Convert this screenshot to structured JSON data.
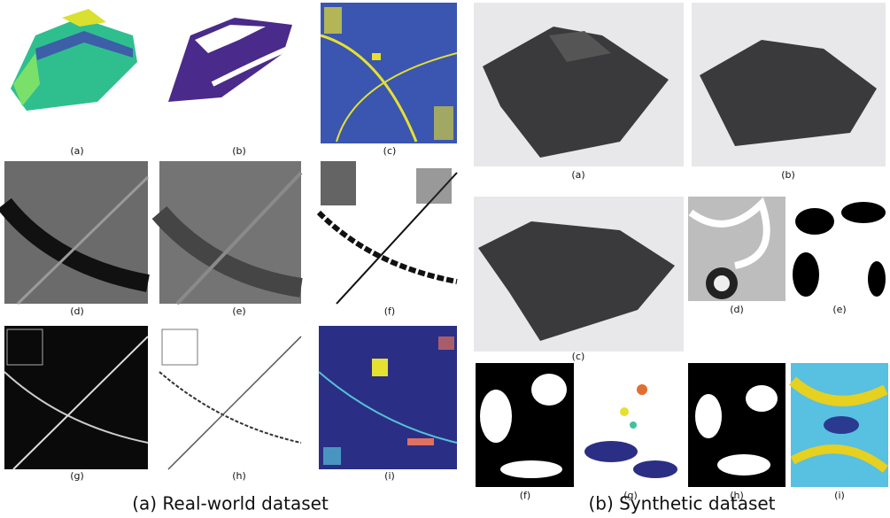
{
  "real_world": {
    "caption": "(a) Real-world dataset",
    "panels": [
      "(a)",
      "(b)",
      "(c)",
      "(d)",
      "(e)",
      "(f)",
      "(g)",
      "(h)",
      "(i)"
    ]
  },
  "synthetic": {
    "caption": "(b) Synthetic dataset",
    "panels": [
      "(a)",
      "(b)",
      "(c)",
      "(d)",
      "(e)",
      "(f)",
      "(g)",
      "(h)",
      "(i)"
    ]
  }
}
